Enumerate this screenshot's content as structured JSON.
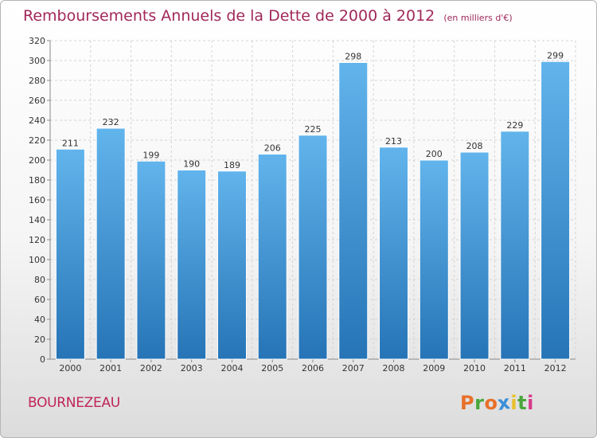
{
  "header": {
    "title": "Remboursements Annuels de la Dette de 2000 à 2012",
    "unit": "(en milliers d'€)"
  },
  "footer": {
    "commune": "BOURNEZEAU",
    "logo_text": "Proxiti"
  },
  "colors": {
    "title": "#a0285a",
    "bar_top": "#62b4ec",
    "bar_bottom": "#2674b6",
    "logo_letters": [
      "#e8702a",
      "#4aa63c",
      "#e8702a",
      "#3a8fd8",
      "#e8c02a",
      "#4aa63c",
      "#d83a8a"
    ]
  },
  "chart_data": {
    "type": "bar",
    "categories": [
      "2000",
      "2001",
      "2002",
      "2003",
      "2004",
      "2005",
      "2006",
      "2007",
      "2008",
      "2009",
      "2010",
      "2011",
      "2012"
    ],
    "values": [
      211,
      232,
      199,
      190,
      189,
      206,
      225,
      298,
      213,
      200,
      208,
      229,
      299
    ],
    "title": "Remboursements Annuels de la Dette de 2000 à 2012",
    "xlabel": "",
    "ylabel": "",
    "ylim": [
      0,
      320
    ],
    "yticks": [
      0,
      20,
      40,
      60,
      80,
      100,
      120,
      140,
      160,
      180,
      200,
      220,
      240,
      260,
      280,
      300,
      320
    ],
    "grid": true,
    "data_labels": true
  }
}
